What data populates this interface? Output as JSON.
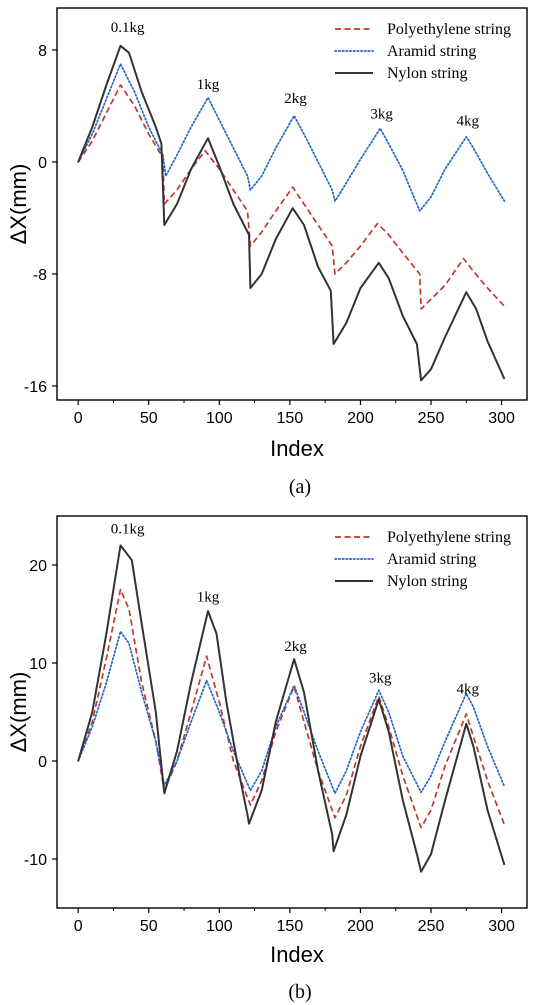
{
  "chart_data": [
    {
      "type": "line",
      "panel_label": "(a)",
      "xlabel": "Index",
      "ylabel": "ΔX(mm)",
      "xlim": [
        -15,
        318
      ],
      "ylim": [
        -17,
        11
      ],
      "xticks": [
        0,
        50,
        100,
        150,
        200,
        250,
        300
      ],
      "yticks": [
        8,
        0,
        -8,
        -16
      ],
      "grid": false,
      "legend_position": "top-right",
      "annotations": [
        {
          "text": "0.1kg",
          "x": 35,
          "y": 9.3
        },
        {
          "text": "1kg",
          "x": 92,
          "y": 5.2
        },
        {
          "text": "2kg",
          "x": 154,
          "y": 4.2
        },
        {
          "text": "3kg",
          "x": 215,
          "y": 3.1
        },
        {
          "text": "4kg",
          "x": 276,
          "y": 2.6
        }
      ],
      "series": [
        {
          "name": "Polyethylene string",
          "color": "#c0392b",
          "style": "dashed",
          "points": [
            [
              0,
              0
            ],
            [
              10,
              1.5
            ],
            [
              20,
              3.5
            ],
            [
              30,
              5.5
            ],
            [
              40,
              4
            ],
            [
              50,
              2
            ],
            [
              60,
              0.3
            ],
            [
              61,
              -3
            ],
            [
              70,
              -2
            ],
            [
              80,
              -0.5
            ],
            [
              90,
              0.8
            ],
            [
              100,
              -0.5
            ],
            [
              110,
              -2
            ],
            [
              120,
              -3.5
            ],
            [
              122,
              -6
            ],
            [
              130,
              -5
            ],
            [
              140,
              -3.5
            ],
            [
              152,
              -1.8
            ],
            [
              160,
              -3
            ],
            [
              170,
              -4.5
            ],
            [
              180,
              -6
            ],
            [
              182,
              -8
            ],
            [
              190,
              -7.2
            ],
            [
              200,
              -6
            ],
            [
              212,
              -4.4
            ],
            [
              220,
              -5.2
            ],
            [
              230,
              -6.5
            ],
            [
              242,
              -8
            ],
            [
              243,
              -10.5
            ],
            [
              250,
              -9.8
            ],
            [
              260,
              -8.8
            ],
            [
              273,
              -6.9
            ],
            [
              280,
              -7.8
            ],
            [
              290,
              -9
            ],
            [
              302,
              -10.3
            ]
          ]
        },
        {
          "name": "Aramid string",
          "color": "#2266cc",
          "style": "dotted",
          "points": [
            [
              0,
              0
            ],
            [
              10,
              2
            ],
            [
              20,
              4.5
            ],
            [
              30,
              7
            ],
            [
              40,
              5
            ],
            [
              50,
              2.5
            ],
            [
              60,
              0.5
            ],
            [
              62,
              -1
            ],
            [
              70,
              0.5
            ],
            [
              80,
              2.5
            ],
            [
              92,
              4.6
            ],
            [
              100,
              3
            ],
            [
              110,
              1
            ],
            [
              120,
              -1
            ],
            [
              122,
              -2
            ],
            [
              130,
              -1
            ],
            [
              140,
              1
            ],
            [
              153,
              3.3
            ],
            [
              160,
              2
            ],
            [
              170,
              0
            ],
            [
              180,
              -2
            ],
            [
              182,
              -2.8
            ],
            [
              190,
              -1.5
            ],
            [
              200,
              0.2
            ],
            [
              214,
              2.4
            ],
            [
              220,
              1.3
            ],
            [
              230,
              -0.6
            ],
            [
              242,
              -3.5
            ],
            [
              250,
              -2.5
            ],
            [
              260,
              -0.5
            ],
            [
              275,
              1.8
            ],
            [
              280,
              1
            ],
            [
              290,
              -0.8
            ],
            [
              302,
              -2.8
            ]
          ]
        },
        {
          "name": "Nylon string",
          "color": "#333333",
          "style": "solid",
          "points": [
            [
              0,
              0
            ],
            [
              10,
              2.5
            ],
            [
              20,
              5.5
            ],
            [
              30,
              8.3
            ],
            [
              36,
              7.8
            ],
            [
              45,
              5
            ],
            [
              55,
              2.5
            ],
            [
              59,
              1.3
            ],
            [
              61,
              -4.5
            ],
            [
              70,
              -3
            ],
            [
              80,
              -0.5
            ],
            [
              92,
              1.7
            ],
            [
              100,
              -0.3
            ],
            [
              110,
              -3
            ],
            [
              118,
              -4.6
            ],
            [
              121,
              -5.2
            ],
            [
              122,
              -9
            ],
            [
              130,
              -8
            ],
            [
              140,
              -5.5
            ],
            [
              152,
              -3.3
            ],
            [
              160,
              -4.5
            ],
            [
              170,
              -7.5
            ],
            [
              179,
              -9.2
            ],
            [
              181,
              -13
            ],
            [
              190,
              -11.5
            ],
            [
              200,
              -9
            ],
            [
              213,
              -7.2
            ],
            [
              220,
              -8.3
            ],
            [
              230,
              -11
            ],
            [
              240,
              -13
            ],
            [
              243,
              -15.6
            ],
            [
              250,
              -14.8
            ],
            [
              260,
              -12.5
            ],
            [
              275,
              -9.3
            ],
            [
              282,
              -10.5
            ],
            [
              290,
              -12.8
            ],
            [
              302,
              -15.5
            ]
          ]
        }
      ]
    },
    {
      "type": "line",
      "panel_label": "(b)",
      "xlabel": "Index",
      "ylabel": "ΔX(mm)",
      "xlim": [
        -15,
        318
      ],
      "ylim": [
        -15,
        25
      ],
      "xticks": [
        0,
        50,
        100,
        150,
        200,
        250,
        300
      ],
      "yticks": [
        20,
        10,
        0,
        -10
      ],
      "grid": false,
      "legend_position": "top-right",
      "annotations": [
        {
          "text": "0.1kg",
          "x": 35,
          "y": 23.2
        },
        {
          "text": "1kg",
          "x": 92,
          "y": 16.3
        },
        {
          "text": "2kg",
          "x": 154,
          "y": 11.2
        },
        {
          "text": "3kg",
          "x": 214,
          "y": 8.0
        },
        {
          "text": "4kg",
          "x": 276,
          "y": 6.9
        }
      ],
      "series": [
        {
          "name": "Polyethylene string",
          "color": "#c0392b",
          "style": "dashed",
          "points": [
            [
              0,
              0
            ],
            [
              10,
              4
            ],
            [
              20,
              10.5
            ],
            [
              30,
              17.5
            ],
            [
              36,
              15.5
            ],
            [
              45,
              8
            ],
            [
              55,
              2
            ],
            [
              61,
              -3
            ],
            [
              70,
              0
            ],
            [
              80,
              5
            ],
            [
              91,
              10.7
            ],
            [
              100,
              6
            ],
            [
              110,
              0
            ],
            [
              122,
              -4.5
            ],
            [
              130,
              -2
            ],
            [
              140,
              3
            ],
            [
              153,
              7.6
            ],
            [
              160,
              4
            ],
            [
              170,
              -1
            ],
            [
              182,
              -5.8
            ],
            [
              190,
              -3.5
            ],
            [
              200,
              1.5
            ],
            [
              213,
              6.6
            ],
            [
              220,
              3.5
            ],
            [
              230,
              -1.5
            ],
            [
              243,
              -6.8
            ],
            [
              250,
              -5
            ],
            [
              260,
              -0.5
            ],
            [
              275,
              4.8
            ],
            [
              280,
              2.5
            ],
            [
              290,
              -2
            ],
            [
              302,
              -6.5
            ]
          ]
        },
        {
          "name": "Aramid string",
          "color": "#2266cc",
          "style": "dotted",
          "points": [
            [
              0,
              0
            ],
            [
              10,
              3.5
            ],
            [
              20,
              8
            ],
            [
              30,
              13.2
            ],
            [
              36,
              12
            ],
            [
              45,
              7
            ],
            [
              55,
              2
            ],
            [
              61,
              -2.5
            ],
            [
              70,
              0
            ],
            [
              80,
              4
            ],
            [
              91,
              8.2
            ],
            [
              100,
              5
            ],
            [
              110,
              1
            ],
            [
              122,
              -3
            ],
            [
              130,
              -1
            ],
            [
              140,
              3.5
            ],
            [
              153,
              7.7
            ],
            [
              160,
              5
            ],
            [
              170,
              1
            ],
            [
              182,
              -3.3
            ],
            [
              190,
              -1
            ],
            [
              200,
              3
            ],
            [
              213,
              7.2
            ],
            [
              220,
              5
            ],
            [
              230,
              0.5
            ],
            [
              243,
              -3.2
            ],
            [
              250,
              -1.5
            ],
            [
              260,
              2
            ],
            [
              275,
              6.9
            ],
            [
              280,
              5.5
            ],
            [
              290,
              1.5
            ],
            [
              302,
              -2.6
            ]
          ]
        },
        {
          "name": "Nylon string",
          "color": "#333333",
          "style": "solid",
          "points": [
            [
              0,
              0
            ],
            [
              10,
              5
            ],
            [
              20,
              13
            ],
            [
              30,
              22
            ],
            [
              38,
              20.5
            ],
            [
              45,
              14
            ],
            [
              55,
              5
            ],
            [
              61,
              -3.3
            ],
            [
              70,
              1
            ],
            [
              80,
              8
            ],
            [
              92,
              15.3
            ],
            [
              98,
              13
            ],
            [
              105,
              6
            ],
            [
              115,
              -2
            ],
            [
              120,
              -5.5
            ],
            [
              121,
              -6.4
            ],
            [
              130,
              -3
            ],
            [
              140,
              4
            ],
            [
              153,
              10.4
            ],
            [
              160,
              7
            ],
            [
              170,
              -1
            ],
            [
              180,
              -7.5
            ],
            [
              181,
              -9.2
            ],
            [
              190,
              -5.5
            ],
            [
              200,
              0.5
            ],
            [
              213,
              6.3
            ],
            [
              220,
              3
            ],
            [
              230,
              -4
            ],
            [
              240,
              -9.5
            ],
            [
              243,
              -11.3
            ],
            [
              250,
              -9.5
            ],
            [
              260,
              -4
            ],
            [
              275,
              3.8
            ],
            [
              280,
              1.5
            ],
            [
              290,
              -5
            ],
            [
              302,
              -10.6
            ]
          ]
        }
      ]
    }
  ]
}
